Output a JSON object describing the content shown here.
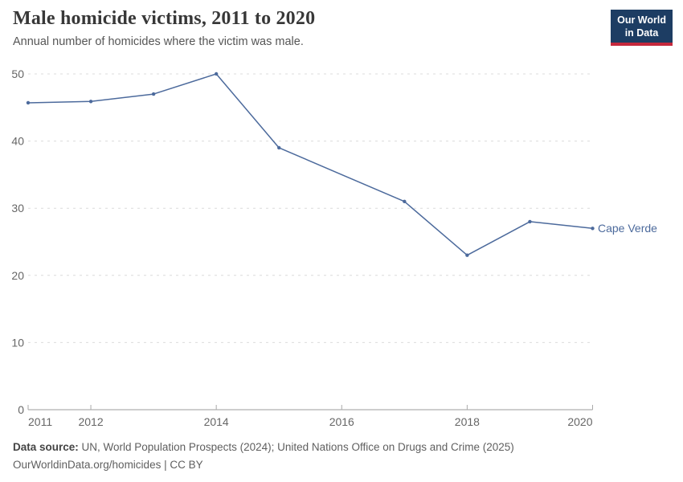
{
  "logo": {
    "line1": "Our World",
    "line2": "in Data",
    "bg_color": "#1d3d63",
    "bar_color": "#c5283c"
  },
  "chart_data": {
    "type": "line",
    "title": "Male homicide victims, 2011 to 2020",
    "subtitle": "Annual number of homicides where the victim was male.",
    "x": [
      2011,
      2012,
      2013,
      2014,
      2015,
      2016,
      2017,
      2018,
      2019,
      2020
    ],
    "series": [
      {
        "name": "Cape Verde",
        "color": "#4c6a9c",
        "values": [
          45.7,
          45.9,
          47,
          50,
          39,
          35,
          31,
          23,
          28,
          27
        ],
        "marker_years": [
          2011,
          2012,
          2013,
          2014,
          2015,
          2017,
          2018,
          2019,
          2020
        ]
      }
    ],
    "ylim": [
      0,
      50
    ],
    "yticks": [
      0,
      10,
      20,
      30,
      40,
      50
    ],
    "xticks": [
      2011,
      2012,
      2014,
      2016,
      2018,
      2020
    ],
    "grid": "horizontal-dashed",
    "legend_position": "end-of-line-label"
  },
  "footer": {
    "source_label": "Data source:",
    "source_text": " UN, World Population Prospects (2024); United Nations Office on Drugs and Crime (2025)",
    "citation_link": "OurWorldinData.org/homicides",
    "citation_suffix": " | CC BY"
  }
}
